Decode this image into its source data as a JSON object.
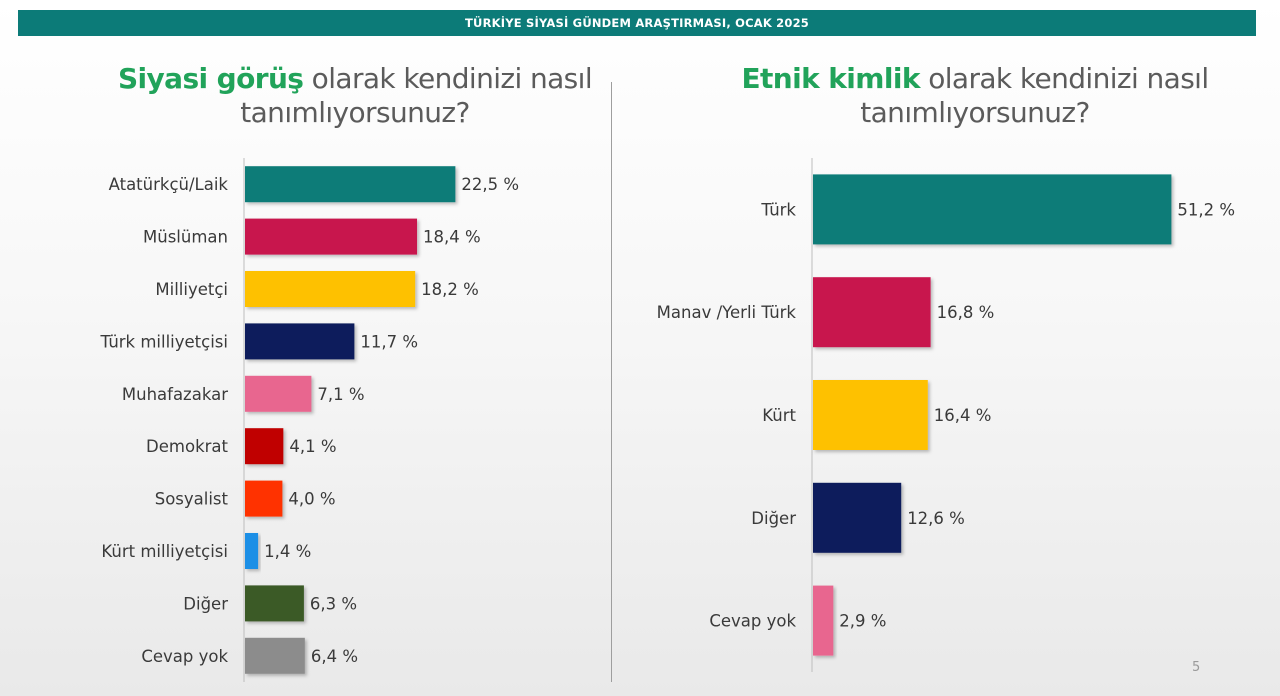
{
  "header": {
    "title": "TÜRKİYE SİYASİ GÜNDEM ARAŞTIRMASI, OCAK 2025"
  },
  "left_question": {
    "highlight": "Siyasi görüş",
    "rest": " olarak kendinizi nasıl",
    "line2": "tanımlıyorsunuz?"
  },
  "right_question": {
    "highlight": "Etnik kimlik",
    "rest": " olarak kendinizi nasıl",
    "line2": "tanımlıyorsunuz?"
  },
  "page_number": "5",
  "colors": {
    "header": "#0c7b78",
    "highlight": "#21a35a"
  },
  "chart_data": [
    {
      "type": "bar",
      "orientation": "horizontal",
      "title": "Siyasi görüş olarak kendinizi nasıl tanımlıyorsunuz?",
      "categories": [
        "Atatürkçü/Laik",
        "Müslüman",
        "Milliyetçi",
        "Türk milliyetçisi",
        "Muhafazakar",
        "Demokrat",
        "Sosyalist",
        "Kürt milliyetçisi",
        "Diğer",
        "Cevap yok"
      ],
      "values": [
        22.5,
        18.4,
        18.2,
        11.7,
        7.1,
        4.1,
        4.0,
        1.4,
        6.3,
        6.4
      ],
      "labels": [
        "22,5 %",
        "18,4 %",
        "18,2 %",
        "11,7 %",
        "7,1 %",
        "4,1 %",
        "4,0 %",
        "1,4 %",
        "6,3 %",
        "6,4 %"
      ],
      "colors": [
        "#0c7b78",
        "#c8194d",
        "#fec100",
        "#0e1f5b",
        "#e8668f",
        "#c00000",
        "#ff3300",
        "#1e8fe6",
        "#3b5a25",
        "#8c8c8c"
      ]
    },
    {
      "type": "bar",
      "orientation": "horizontal",
      "title": "Etnik kimlik olarak kendinizi nasıl tanımlıyorsunuz?",
      "categories": [
        "Türk",
        "Manav /Yerli Türk",
        "Kürt",
        "Diğer",
        "Cevap yok"
      ],
      "values": [
        51.2,
        16.8,
        16.4,
        12.6,
        2.9
      ],
      "labels": [
        "51,2 %",
        "16,8 %",
        "16,4 %",
        "12,6 %",
        "2,9 %"
      ],
      "colors": [
        "#0c7b78",
        "#c8194d",
        "#fec100",
        "#0e1f5b",
        "#e8668f"
      ]
    }
  ]
}
